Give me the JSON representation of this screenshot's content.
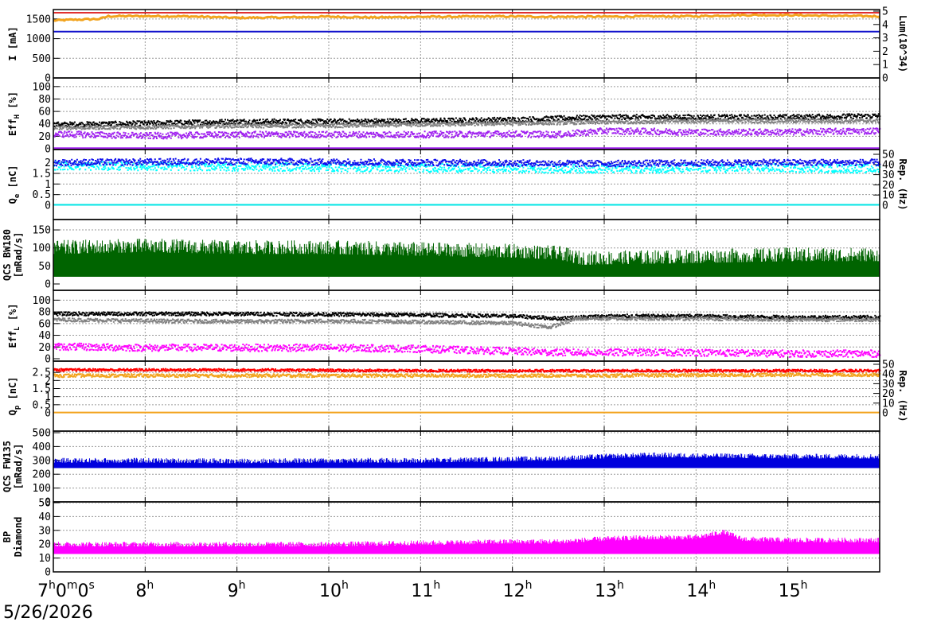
{
  "chart_data": {
    "type": "line",
    "date": "5/26/2026",
    "x_ticks": [
      {
        "label": "7",
        "sup": "h",
        "rest": "0",
        "rest_sup": "m",
        "rest2": "0",
        "rest2_sup": "s"
      },
      {
        "label": "8",
        "sup": "h"
      },
      {
        "label": "9",
        "sup": "h"
      },
      {
        "label": "10",
        "sup": "h"
      },
      {
        "label": "11",
        "sup": "h"
      },
      {
        "label": "12",
        "sup": "h"
      },
      {
        "label": "13",
        "sup": "h"
      },
      {
        "label": "14",
        "sup": "h"
      },
      {
        "label": "15",
        "sup": "h"
      }
    ],
    "xlim_hours": [
      7.0,
      16.0
    ],
    "grid": true,
    "panels": [
      {
        "id": "current",
        "ylabel": [
          "I [mA]"
        ],
        "ylim": [
          0,
          1700
        ],
        "yticks": [
          "0",
          "500",
          "1000",
          "1500"
        ],
        "right_ylabel": "Lum(10^34)",
        "right_yticks": [
          "0",
          "1",
          "2",
          "3",
          "4",
          "5"
        ],
        "series": [
          {
            "kind": "band",
            "color": "#f2a31d",
            "points": [
              [
                7.0,
                1460
              ],
              [
                7.2,
                1480
              ],
              [
                7.5,
                1500
              ],
              [
                7.6,
                1570
              ],
              [
                8.0,
                1575
              ],
              [
                8.5,
                1565
              ],
              [
                9.0,
                1530
              ],
              [
                9.5,
                1540
              ],
              [
                10.0,
                1560
              ],
              [
                10.5,
                1540
              ],
              [
                11.0,
                1555
              ],
              [
                11.5,
                1560
              ],
              [
                12.0,
                1565
              ],
              [
                12.5,
                1555
              ],
              [
                13.0,
                1560
              ],
              [
                13.5,
                1565
              ],
              [
                14.0,
                1570
              ],
              [
                14.5,
                1600
              ],
              [
                15.0,
                1600
              ],
              [
                15.5,
                1580
              ],
              [
                16.0,
                1570
              ]
            ],
            "thickness": 40
          },
          {
            "kind": "flat",
            "color": "#e03030",
            "value": 1660
          },
          {
            "kind": "flat",
            "color": "#1010cc",
            "value": 1180
          }
        ]
      },
      {
        "id": "eff_h",
        "ylabel": [
          "Eff_H [%]"
        ],
        "ylim": [
          0,
          110
        ],
        "yticks": [
          "0",
          "20",
          "40",
          "60",
          "80",
          "100"
        ],
        "series": [
          {
            "kind": "scatter",
            "color": "#000000",
            "points": [
              [
                7.0,
                40
              ],
              [
                8.0,
                42
              ],
              [
                9.0,
                45
              ],
              [
                10.0,
                45
              ],
              [
                11.0,
                46
              ],
              [
                12.0,
                48
              ],
              [
                12.5,
                50
              ],
              [
                13.0,
                52
              ],
              [
                14.0,
                52
              ],
              [
                15.0,
                52
              ],
              [
                16.0,
                54
              ]
            ],
            "spread": 8
          },
          {
            "kind": "scatter",
            "color": "#808080",
            "points": [
              [
                7.0,
                35
              ],
              [
                8.0,
                36
              ],
              [
                9.0,
                38
              ],
              [
                10.0,
                38
              ],
              [
                11.0,
                40
              ],
              [
                12.0,
                42
              ],
              [
                13.0,
                44
              ],
              [
                14.0,
                46
              ],
              [
                15.0,
                46
              ],
              [
                16.0,
                46
              ]
            ],
            "spread": 6
          },
          {
            "kind": "scatter",
            "color": "#a020f0",
            "points": [
              [
                7.0,
                25
              ],
              [
                8.0,
                22
              ],
              [
                9.0,
                24
              ],
              [
                10.0,
                24
              ],
              [
                11.0,
                24
              ],
              [
                12.0,
                25
              ],
              [
                12.5,
                24
              ],
              [
                13.0,
                30
              ],
              [
                14.0,
                28
              ],
              [
                15.0,
                28
              ],
              [
                16.0,
                30
              ]
            ],
            "spread": 10
          },
          {
            "kind": "flat",
            "color": "#a020f0",
            "value": 1
          }
        ]
      },
      {
        "id": "qe",
        "ylabel": [
          "Q_e [nC]"
        ],
        "ylim": [
          0,
          2.4
        ],
        "yticks": [
          "0",
          "0.5",
          "1",
          "1.5",
          "2"
        ],
        "right_ylabel": "Rep. (Hz)",
        "right_yticks": [
          "0",
          "10",
          "20",
          "30",
          "40",
          "50"
        ],
        "series": [
          {
            "kind": "scatter",
            "color": "#00ffff",
            "points": [
              [
                7.0,
                1.9
              ],
              [
                9.0,
                1.85
              ],
              [
                11.0,
                1.8
              ],
              [
                13.0,
                1.75
              ],
              [
                15.0,
                1.8
              ],
              [
                16.0,
                1.75
              ]
            ],
            "spread": 0.4
          },
          {
            "kind": "scatter",
            "color": "#1010ee",
            "points": [
              [
                7.0,
                2.05
              ],
              [
                9.0,
                2.1
              ],
              [
                11.0,
                2.05
              ],
              [
                13.0,
                2.0
              ],
              [
                15.0,
                2.05
              ],
              [
                16.0,
                2.05
              ]
            ],
            "spread": 0.3
          },
          {
            "kind": "flat",
            "color": "#00e5e5",
            "value": 0.02
          }
        ]
      },
      {
        "id": "qcs_bw180",
        "ylabel": [
          "QCS BW180",
          "[mRad/s]"
        ],
        "ylim": [
          0,
          170
        ],
        "yticks": [
          "0",
          "50",
          "100",
          "150"
        ],
        "series": [
          {
            "kind": "bars",
            "color": "#006400",
            "base": 20,
            "points": [
              [
                7.0,
                90
              ],
              [
                8.0,
                95
              ],
              [
                9.0,
                90
              ],
              [
                10.0,
                90
              ],
              [
                11.0,
                85
              ],
              [
                12.0,
                80
              ],
              [
                12.5,
                75
              ],
              [
                12.75,
                60
              ],
              [
                14.0,
                65
              ],
              [
                15.0,
                70
              ],
              [
                16.0,
                70
              ]
            ],
            "spread": 45
          }
        ]
      },
      {
        "id": "eff_l",
        "ylabel": [
          "Eff_L [%]"
        ],
        "ylim": [
          0,
          110
        ],
        "yticks": [
          "0",
          "20",
          "40",
          "60",
          "80",
          "100"
        ],
        "series": [
          {
            "kind": "scatter",
            "color": "#000000",
            "points": [
              [
                7.0,
                78
              ],
              [
                8.0,
                78
              ],
              [
                9.0,
                78
              ],
              [
                10.0,
                77
              ],
              [
                11.0,
                76
              ],
              [
                12.0,
                74
              ],
              [
                12.5,
                70
              ],
              [
                12.7,
                72
              ],
              [
                13.0,
                74
              ],
              [
                14.0,
                74
              ],
              [
                15.0,
                72
              ],
              [
                16.0,
                72
              ]
            ],
            "spread": 6
          },
          {
            "kind": "scatter",
            "color": "#808080",
            "points": [
              [
                7.0,
                68
              ],
              [
                8.0,
                66
              ],
              [
                9.0,
                65
              ],
              [
                10.0,
                66
              ],
              [
                11.0,
                64
              ],
              [
                12.0,
                62
              ],
              [
                12.4,
                55
              ],
              [
                12.7,
                70
              ],
              [
                14.0,
                70
              ],
              [
                15.0,
                68
              ],
              [
                16.0,
                68
              ]
            ],
            "spread": 6
          },
          {
            "kind": "scatter",
            "color": "#ff00ff",
            "points": [
              [
                7.0,
                22
              ],
              [
                8.0,
                20
              ],
              [
                9.0,
                20
              ],
              [
                10.0,
                20
              ],
              [
                11.0,
                18
              ],
              [
                12.0,
                14
              ],
              [
                12.5,
                12
              ],
              [
                13.0,
                12
              ],
              [
                14.0,
                12
              ],
              [
                15.0,
                10
              ],
              [
                16.0,
                10
              ]
            ],
            "spread": 12
          }
        ]
      },
      {
        "id": "qp",
        "ylabel": [
          "Q_p [nC]"
        ],
        "ylim": [
          0,
          3.0
        ],
        "yticks": [
          "0",
          "0.5",
          "1",
          "1.5",
          "2",
          "2.5"
        ],
        "right_ylabel": "Rep. (Hz)",
        "right_yticks": [
          "0",
          "10",
          "20",
          "30",
          "40",
          "50"
        ],
        "series": [
          {
            "kind": "scatter",
            "color": "#f2a31d",
            "points": [
              [
                7.0,
                2.35
              ],
              [
                9.0,
                2.35
              ],
              [
                11.0,
                2.35
              ],
              [
                13.0,
                2.35
              ],
              [
                15.0,
                2.4
              ],
              [
                16.0,
                2.4
              ]
            ],
            "spread": 0.2
          },
          {
            "kind": "scatter",
            "color": "#ff0000",
            "points": [
              [
                7.0,
                2.7
              ],
              [
                9.0,
                2.7
              ],
              [
                11.0,
                2.65
              ],
              [
                13.0,
                2.65
              ],
              [
                15.0,
                2.65
              ],
              [
                16.0,
                2.65
              ]
            ],
            "spread": 0.15
          },
          {
            "kind": "flat",
            "color": "#f2a31d",
            "value": 0.02
          }
        ]
      },
      {
        "id": "qcs_fw135",
        "ylabel": [
          "QCS FW135",
          "[mRad/s]"
        ],
        "ylim": [
          0,
          500
        ],
        "yticks": [
          "0",
          "100",
          "200",
          "300",
          "400",
          "500"
        ],
        "series": [
          {
            "kind": "bars",
            "color": "#0000dd",
            "base": 245,
            "points": [
              [
                7.0,
                290
              ],
              [
                8.0,
                290
              ],
              [
                9.0,
                285
              ],
              [
                10.0,
                290
              ],
              [
                11.0,
                290
              ],
              [
                12.0,
                300
              ],
              [
                12.5,
                305
              ],
              [
                13.0,
                320
              ],
              [
                13.5,
                330
              ],
              [
                14.0,
                325
              ],
              [
                15.0,
                320
              ],
              [
                16.0,
                320
              ]
            ],
            "spread": 40
          }
        ]
      },
      {
        "id": "bp_diamond",
        "ylabel": [
          "BP",
          "Diamond"
        ],
        "ylim": [
          0,
          50
        ],
        "yticks": [
          "0",
          "10",
          "20",
          "30",
          "40",
          "50"
        ],
        "series": [
          {
            "kind": "bars",
            "color": "#ff00ff",
            "base": 13,
            "points": [
              [
                7.0,
                19
              ],
              [
                8.0,
                19
              ],
              [
                9.0,
                19
              ],
              [
                10.0,
                19
              ],
              [
                11.0,
                20
              ],
              [
                12.0,
                21
              ],
              [
                12.5,
                21
              ],
              [
                13.0,
                23
              ],
              [
                13.5,
                24
              ],
              [
                14.0,
                24
              ],
              [
                14.3,
                28
              ],
              [
                14.5,
                23
              ],
              [
                15.0,
                22
              ],
              [
                16.0,
                22
              ]
            ],
            "spread": 4
          }
        ]
      }
    ]
  }
}
